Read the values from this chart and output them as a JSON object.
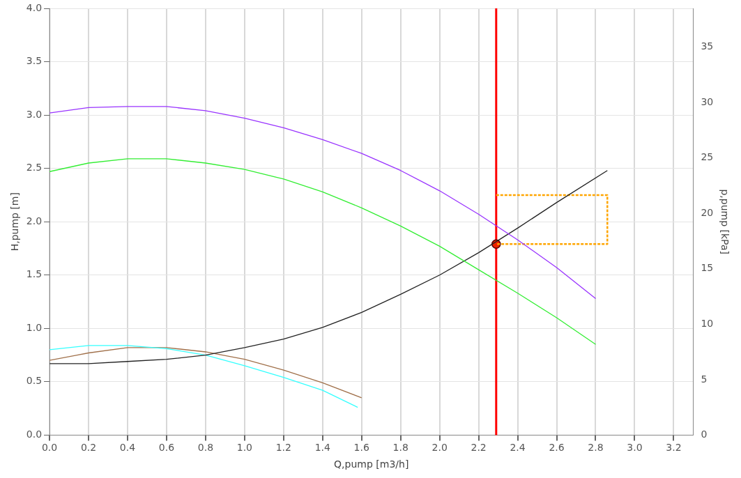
{
  "chart_data": {
    "type": "line",
    "xlabel": "Q,pump [m3/h]",
    "ylabel": "H,pump [m]",
    "y2label": "p,pump [kPa]",
    "xlim": [
      0,
      3.3
    ],
    "xticks": [
      {
        "value": 0,
        "label": "0.0"
      },
      0.2,
      0.4,
      0.6,
      0.8,
      {
        "value": 1,
        "label": "1.0"
      },
      1.2,
      1.4,
      1.6,
      1.8,
      {
        "value": 2,
        "label": "2.0"
      },
      2.2,
      2.4,
      2.6,
      2.8,
      {
        "value": 3,
        "label": "3.0"
      },
      3.2
    ],
    "ylim": [
      0,
      4
    ],
    "yticks": [
      {
        "value": 0,
        "label": "0.0"
      },
      0.5,
      {
        "value": 1,
        "label": "1.0"
      },
      1.5,
      {
        "value": 2,
        "label": "2.0"
      },
      2.5,
      {
        "value": 3,
        "label": "3.0"
      },
      3.5,
      {
        "value": 4,
        "label": "4.0"
      }
    ],
    "y2lim": [
      0,
      38.5
    ],
    "y2ticks": [
      0,
      5,
      10,
      15,
      20,
      25,
      30,
      35
    ],
    "grid": true,
    "legend": false,
    "marker": "none",
    "line_style": "solid",
    "series": [
      {
        "color": "#9933ff",
        "x": [
          0,
          0.2,
          0.4,
          0.6,
          0.8,
          1.0,
          1.2,
          1.4,
          1.6,
          1.8,
          2.0,
          2.2,
          2.4,
          2.6,
          2.8
        ],
        "values": [
          3.02,
          3.07,
          3.08,
          3.08,
          3.04,
          2.97,
          2.88,
          2.77,
          2.64,
          2.48,
          2.29,
          2.07,
          1.83,
          1.57,
          1.28
        ]
      },
      {
        "color": "#33ee33",
        "x": [
          0,
          0.2,
          0.4,
          0.6,
          0.8,
          1.0,
          1.2,
          1.4,
          1.6,
          1.8,
          2.0,
          2.2,
          2.4,
          2.6,
          2.8
        ],
        "values": [
          2.47,
          2.55,
          2.59,
          2.59,
          2.55,
          2.49,
          2.4,
          2.28,
          2.13,
          1.96,
          1.77,
          1.55,
          1.33,
          1.1,
          0.85
        ]
      },
      {
        "color": "#222222",
        "x": [
          0,
          0.2,
          0.4,
          0.6,
          0.8,
          1.0,
          1.2,
          1.4,
          1.6,
          1.8,
          2.0,
          2.2,
          2.4,
          2.6,
          2.86
        ],
        "values": [
          0.67,
          0.67,
          0.69,
          0.71,
          0.75,
          0.82,
          0.9,
          1.01,
          1.15,
          1.32,
          1.5,
          1.71,
          1.94,
          2.18,
          2.48
        ]
      },
      {
        "color": "#33ffff",
        "x": [
          0,
          0.2,
          0.4,
          0.6,
          0.8,
          1.0,
          1.2,
          1.4,
          1.58
        ],
        "values": [
          0.8,
          0.84,
          0.84,
          0.81,
          0.75,
          0.65,
          0.54,
          0.42,
          0.26
        ]
      },
      {
        "color": "#a0704a",
        "x": [
          0,
          0.2,
          0.4,
          0.6,
          0.8,
          1.0,
          1.2,
          1.4,
          1.6
        ],
        "values": [
          0.7,
          0.77,
          0.82,
          0.82,
          0.78,
          0.71,
          0.61,
          0.49,
          0.35
        ]
      },
      {
        "color": "#ffa500",
        "line_style": "dotted",
        "x": [
          2.29,
          2.86,
          2.86,
          2.29
        ],
        "values": [
          2.25,
          2.25,
          1.79,
          1.79
        ]
      },
      {
        "type": "scatter",
        "marker": "circle",
        "color": "#ee2200",
        "x": [
          2.29
        ],
        "values": [
          1.79
        ]
      }
    ],
    "ref_lines": [
      {
        "axis": "x",
        "value": 2.29,
        "color": "#ff0000"
      }
    ]
  }
}
